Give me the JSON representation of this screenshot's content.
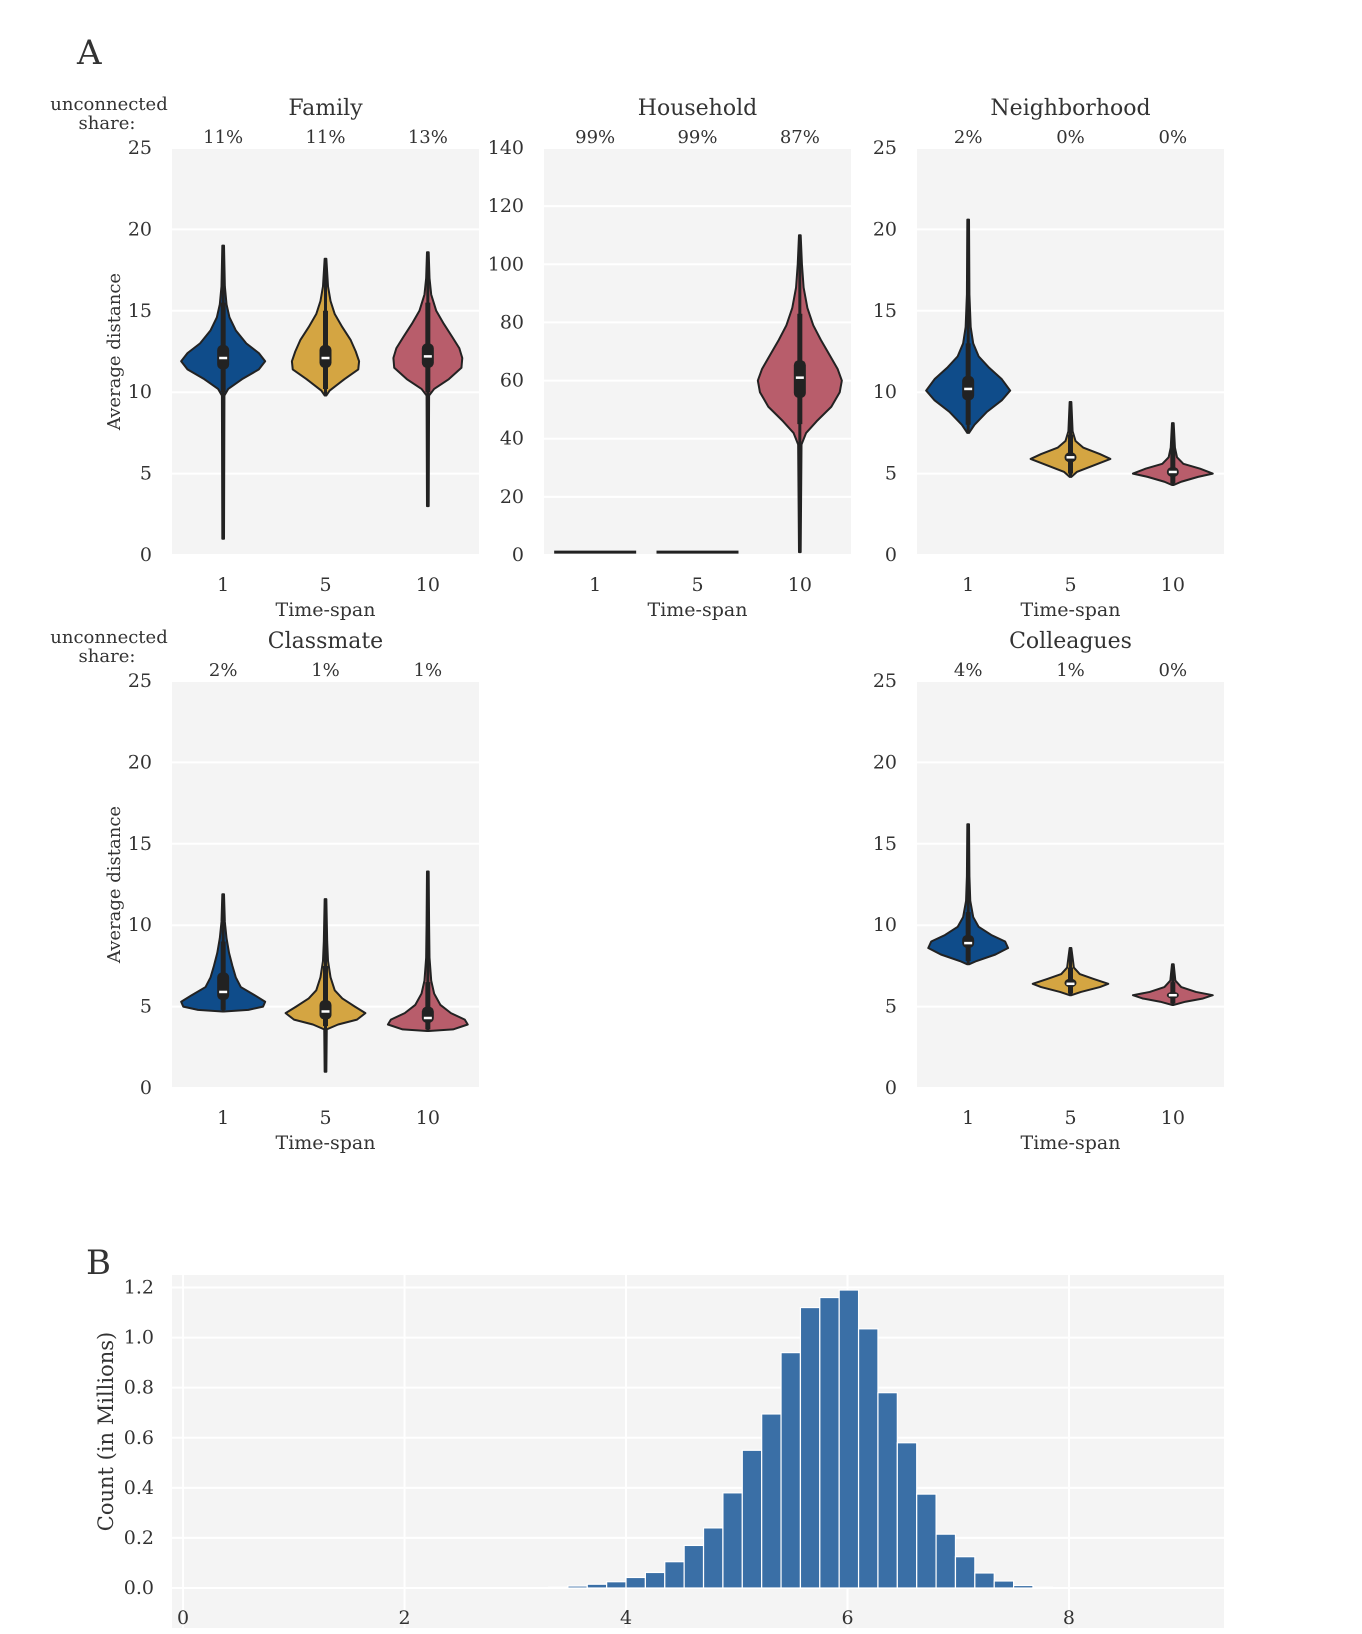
{
  "figure": {
    "panel_a_label": "A",
    "panel_b_label": "B"
  },
  "chart_data": [
    {
      "type": "violin",
      "title": "Family",
      "xlabel": "Time-span",
      "ylabel": "Average distance",
      "categories": [
        "1",
        "5",
        "10"
      ],
      "ylim": [
        0,
        25
      ],
      "yticks": [
        0,
        5,
        10,
        15,
        20,
        25
      ],
      "unconnected_label": "unconnected\nshare:",
      "unconnected_share": [
        "11%",
        "11%",
        "13%"
      ],
      "grid": true,
      "violins": [
        {
          "min": 1.0,
          "max": 19.0,
          "q1": 11.4,
          "median": 12.1,
          "q3": 12.9,
          "lower_whisker": 10.0,
          "upper_whisker": 15.5,
          "profile": [
            [
              1.0,
              0.02
            ],
            [
              9.8,
              0.03
            ],
            [
              10.2,
              0.12
            ],
            [
              10.8,
              0.45
            ],
            [
              11.4,
              0.85
            ],
            [
              11.9,
              1.0
            ],
            [
              12.4,
              0.85
            ],
            [
              13.0,
              0.55
            ],
            [
              13.8,
              0.3
            ],
            [
              14.6,
              0.15
            ],
            [
              15.4,
              0.08
            ],
            [
              16.5,
              0.04
            ],
            [
              19.0,
              0.02
            ]
          ]
        },
        {
          "min": 9.8,
          "max": 18.2,
          "q1": 11.5,
          "median": 12.1,
          "q3": 12.9,
          "lower_whisker": 10.2,
          "upper_whisker": 15.0,
          "profile": [
            [
              9.8,
              0.02
            ],
            [
              10.1,
              0.1
            ],
            [
              10.8,
              0.45
            ],
            [
              11.4,
              0.78
            ],
            [
              11.9,
              0.8
            ],
            [
              12.5,
              0.72
            ],
            [
              13.2,
              0.6
            ],
            [
              14.0,
              0.4
            ],
            [
              14.8,
              0.22
            ],
            [
              15.6,
              0.12
            ],
            [
              16.5,
              0.06
            ],
            [
              18.2,
              0.02
            ]
          ]
        },
        {
          "min": 3.0,
          "max": 18.6,
          "q1": 11.5,
          "median": 12.2,
          "q3": 13.0,
          "lower_whisker": 10.0,
          "upper_whisker": 15.5,
          "profile": [
            [
              3.0,
              0.02
            ],
            [
              9.8,
              0.03
            ],
            [
              10.2,
              0.15
            ],
            [
              10.8,
              0.5
            ],
            [
              11.5,
              0.8
            ],
            [
              12.1,
              0.82
            ],
            [
              12.7,
              0.75
            ],
            [
              13.4,
              0.58
            ],
            [
              14.2,
              0.38
            ],
            [
              15.0,
              0.2
            ],
            [
              16.0,
              0.08
            ],
            [
              17.0,
              0.04
            ],
            [
              18.6,
              0.02
            ]
          ]
        }
      ]
    },
    {
      "type": "violin",
      "title": "Household",
      "xlabel": "Time-span",
      "ylabel": "",
      "categories": [
        "1",
        "5",
        "10"
      ],
      "ylim": [
        0,
        140
      ],
      "yticks": [
        0,
        20,
        40,
        60,
        80,
        100,
        120,
        140
      ],
      "unconnected_label": "",
      "unconnected_share": [
        "99%",
        "99%",
        "87%"
      ],
      "grid": true,
      "violins": [
        {
          "flat": true,
          "value": 1.0
        },
        {
          "flat": true,
          "value": 1.0
        },
        {
          "min": 1.0,
          "max": 110.0,
          "q1": 54.0,
          "median": 61.0,
          "q3": 67.0,
          "lower_whisker": 45.0,
          "upper_whisker": 83.0,
          "profile": [
            [
              1.0,
              0.02
            ],
            [
              38.0,
              0.04
            ],
            [
              42.0,
              0.15
            ],
            [
              46.0,
              0.4
            ],
            [
              51.0,
              0.75
            ],
            [
              56.0,
              0.95
            ],
            [
              60.0,
              1.0
            ],
            [
              64.0,
              0.9
            ],
            [
              69.0,
              0.7
            ],
            [
              74.0,
              0.5
            ],
            [
              79.0,
              0.32
            ],
            [
              85.0,
              0.18
            ],
            [
              92.0,
              0.09
            ],
            [
              100.0,
              0.05
            ],
            [
              110.0,
              0.02
            ]
          ]
        }
      ]
    },
    {
      "type": "violin",
      "title": "Neighborhood",
      "xlabel": "Time-span",
      "ylabel": "",
      "categories": [
        "1",
        "5",
        "10"
      ],
      "ylim": [
        0,
        25
      ],
      "yticks": [
        0,
        5,
        10,
        15,
        20,
        25
      ],
      "unconnected_label": "",
      "unconnected_share": [
        "2%",
        "0%",
        "0%"
      ],
      "grid": true,
      "violins": [
        {
          "min": 7.5,
          "max": 20.6,
          "q1": 9.5,
          "median": 10.2,
          "q3": 11.0,
          "lower_whisker": 8.0,
          "upper_whisker": 13.0,
          "profile": [
            [
              7.5,
              0.02
            ],
            [
              8.0,
              0.15
            ],
            [
              8.8,
              0.45
            ],
            [
              9.5,
              0.8
            ],
            [
              10.1,
              1.0
            ],
            [
              10.8,
              0.8
            ],
            [
              11.5,
              0.5
            ],
            [
              12.2,
              0.25
            ],
            [
              13.0,
              0.12
            ],
            [
              14.0,
              0.06
            ],
            [
              16.0,
              0.03
            ],
            [
              20.6,
              0.02
            ]
          ]
        },
        {
          "min": 4.8,
          "max": 9.4,
          "q1": 5.7,
          "median": 6.0,
          "q3": 6.3,
          "lower_whisker": 5.0,
          "upper_whisker": 7.4,
          "profile": [
            [
              4.8,
              0.02
            ],
            [
              5.1,
              0.15
            ],
            [
              5.5,
              0.55
            ],
            [
              5.9,
              0.95
            ],
            [
              6.2,
              0.7
            ],
            [
              6.6,
              0.3
            ],
            [
              7.0,
              0.12
            ],
            [
              7.6,
              0.05
            ],
            [
              9.4,
              0.02
            ]
          ]
        },
        {
          "min": 4.3,
          "max": 8.1,
          "q1": 4.8,
          "median": 5.1,
          "q3": 5.4,
          "lower_whisker": 4.4,
          "upper_whisker": 6.5,
          "profile": [
            [
              4.3,
              0.02
            ],
            [
              4.5,
              0.2
            ],
            [
              4.8,
              0.6
            ],
            [
              5.0,
              0.95
            ],
            [
              5.3,
              0.65
            ],
            [
              5.6,
              0.25
            ],
            [
              6.0,
              0.1
            ],
            [
              6.6,
              0.05
            ],
            [
              8.1,
              0.02
            ]
          ]
        }
      ]
    },
    {
      "type": "violin",
      "title": "Classmate",
      "xlabel": "Time-span",
      "ylabel": "Average distance",
      "categories": [
        "1",
        "5",
        "10"
      ],
      "ylim": [
        0,
        25
      ],
      "yticks": [
        0,
        5,
        10,
        15,
        20,
        25
      ],
      "unconnected_label": "unconnected\nshare:",
      "unconnected_share": [
        "2%",
        "1%",
        "1%"
      ],
      "grid": true,
      "violins": [
        {
          "min": 4.7,
          "max": 11.9,
          "q1": 5.4,
          "median": 5.9,
          "q3": 7.1,
          "lower_whisker": 4.8,
          "upper_whisker": 9.0,
          "profile": [
            [
              4.7,
              0.02
            ],
            [
              4.8,
              0.6
            ],
            [
              5.0,
              0.95
            ],
            [
              5.3,
              1.0
            ],
            [
              5.7,
              0.75
            ],
            [
              6.2,
              0.42
            ],
            [
              6.8,
              0.3
            ],
            [
              7.5,
              0.22
            ],
            [
              8.3,
              0.14
            ],
            [
              9.2,
              0.08
            ],
            [
              10.2,
              0.04
            ],
            [
              11.9,
              0.02
            ]
          ]
        },
        {
          "min": 1.0,
          "max": 11.6,
          "q1": 4.2,
          "median": 4.7,
          "q3": 5.4,
          "lower_whisker": 3.8,
          "upper_whisker": 7.5,
          "profile": [
            [
              1.0,
              0.02
            ],
            [
              3.6,
              0.03
            ],
            [
              3.9,
              0.3
            ],
            [
              4.2,
              0.75
            ],
            [
              4.6,
              0.95
            ],
            [
              5.0,
              0.7
            ],
            [
              5.5,
              0.4
            ],
            [
              6.0,
              0.22
            ],
            [
              6.8,
              0.12
            ],
            [
              7.8,
              0.06
            ],
            [
              9.0,
              0.04
            ],
            [
              11.6,
              0.02
            ]
          ]
        },
        {
          "min": 3.5,
          "max": 13.3,
          "q1": 4.0,
          "median": 4.3,
          "q3": 5.0,
          "lower_whisker": 3.6,
          "upper_whisker": 6.5,
          "profile": [
            [
              3.5,
              0.02
            ],
            [
              3.6,
              0.6
            ],
            [
              3.9,
              0.95
            ],
            [
              4.2,
              0.88
            ],
            [
              4.6,
              0.55
            ],
            [
              5.1,
              0.3
            ],
            [
              5.8,
              0.15
            ],
            [
              6.6,
              0.08
            ],
            [
              8.0,
              0.04
            ],
            [
              10.0,
              0.03
            ],
            [
              13.3,
              0.02
            ]
          ]
        }
      ]
    },
    {
      "type": "violin",
      "title": "Colleagues",
      "xlabel": "Time-span",
      "ylabel": "",
      "categories": [
        "1",
        "5",
        "10"
      ],
      "ylim": [
        0,
        25
      ],
      "yticks": [
        0,
        5,
        10,
        15,
        20,
        25
      ],
      "unconnected_label": "",
      "unconnected_share": [
        "4%",
        "1%",
        "0%"
      ],
      "grid": true,
      "violins": [
        {
          "min": 7.6,
          "max": 16.2,
          "q1": 8.6,
          "median": 8.9,
          "q3": 9.4,
          "lower_whisker": 7.8,
          "upper_whisker": 10.8,
          "profile": [
            [
              7.6,
              0.02
            ],
            [
              7.8,
              0.2
            ],
            [
              8.2,
              0.65
            ],
            [
              8.6,
              0.95
            ],
            [
              9.0,
              0.88
            ],
            [
              9.4,
              0.55
            ],
            [
              9.9,
              0.25
            ],
            [
              10.5,
              0.12
            ],
            [
              11.5,
              0.05
            ],
            [
              13.0,
              0.03
            ],
            [
              16.2,
              0.02
            ]
          ]
        },
        {
          "min": 5.7,
          "max": 8.6,
          "q1": 6.2,
          "median": 6.4,
          "q3": 6.7,
          "lower_whisker": 5.8,
          "upper_whisker": 7.4,
          "profile": [
            [
              5.7,
              0.02
            ],
            [
              5.9,
              0.25
            ],
            [
              6.2,
              0.7
            ],
            [
              6.4,
              0.9
            ],
            [
              6.7,
              0.55
            ],
            [
              7.0,
              0.22
            ],
            [
              7.4,
              0.08
            ],
            [
              8.6,
              0.02
            ]
          ]
        },
        {
          "min": 5.1,
          "max": 7.6,
          "q1": 5.5,
          "median": 5.7,
          "q3": 5.9,
          "lower_whisker": 5.2,
          "upper_whisker": 6.5,
          "profile": [
            [
              5.1,
              0.02
            ],
            [
              5.3,
              0.3
            ],
            [
              5.5,
              0.72
            ],
            [
              5.7,
              0.95
            ],
            [
              5.9,
              0.55
            ],
            [
              6.2,
              0.2
            ],
            [
              6.6,
              0.06
            ],
            [
              7.6,
              0.02
            ]
          ]
        }
      ]
    },
    {
      "type": "histogram",
      "title": "",
      "xlabel": "",
      "ylabel": "Count (in Millions)",
      "xlim": [
        -0.1,
        9.4
      ],
      "ylim": [
        0,
        1.25
      ],
      "xticks": [
        0,
        2,
        4,
        6,
        8
      ],
      "yticks": [
        "0.0",
        "0.2",
        "0.4",
        "0.6",
        "0.8",
        "1.0",
        "1.2"
      ],
      "bin_width": 0.175,
      "bins_start": 3.3,
      "values": [
        0.003,
        0.008,
        0.015,
        0.025,
        0.042,
        0.062,
        0.105,
        0.17,
        0.24,
        0.38,
        0.55,
        0.695,
        0.94,
        1.12,
        1.16,
        1.19,
        1.035,
        0.78,
        0.58,
        0.375,
        0.215,
        0.125,
        0.06,
        0.028,
        0.01,
        0.003
      ],
      "grid": true
    }
  ],
  "colors": {
    "series": [
      "#0f4c8a",
      "#d4a542",
      "#b85d6b"
    ],
    "histogram_bar": "#3a6fa6",
    "panel_bg": "#f4f4f4",
    "grid": "#ffffff",
    "outline": "#222222",
    "text": "#333333"
  }
}
